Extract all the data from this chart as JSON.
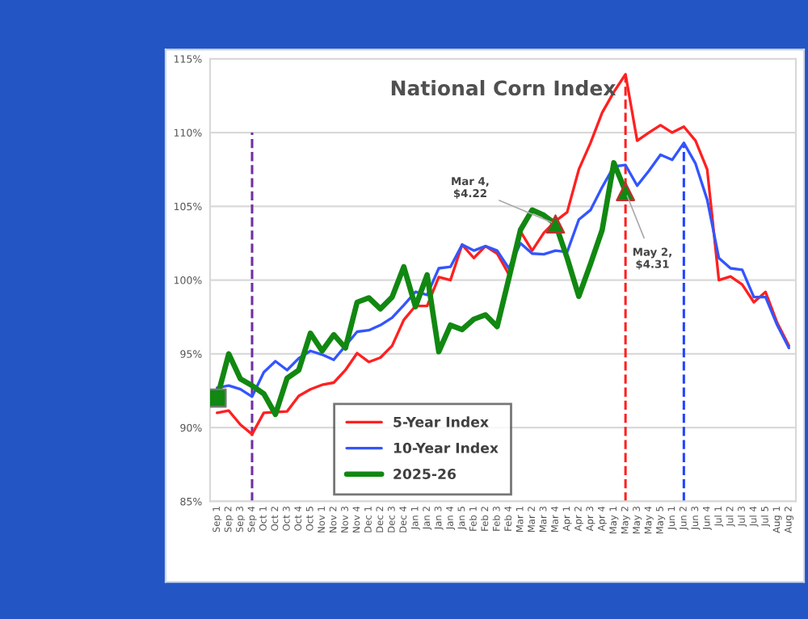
{
  "chart_data": {
    "type": "line",
    "title": "National Corn Index",
    "categories": [
      "Sep 1",
      "Sep 2",
      "Sep 3",
      "Sep 4",
      "Oct 1",
      "Oct 2",
      "Oct 3",
      "Oct 4",
      "Oct 5",
      "Nov 1",
      "Nov 2",
      "Nov 3",
      "Nov 4",
      "Dec 1",
      "Dec 2",
      "Dec 3",
      "Dec 4",
      "Jan 1",
      "Jan 2",
      "Jan 3",
      "Jan 4",
      "Jan 5",
      "Feb 1",
      "Feb 2",
      "Feb 3",
      "Feb 4",
      "Mar 1",
      "Mar 2",
      "Mar 3",
      "Mar 4",
      "Apr 1",
      "Apr 2",
      "Apr 3",
      "Apr 4",
      "May 1",
      "May 2",
      "May 3",
      "May 4",
      "May 5",
      "Jun 1",
      "Jun 2",
      "Jun 3",
      "Jun 4",
      "Jul 1",
      "Jul 2",
      "Jul 3",
      "Jul 4",
      "Jul 5",
      "Aug 1",
      "Aug 2"
    ],
    "series": [
      {
        "name": "5-Year Index",
        "color": "#ff2020",
        "values": [
          91.0,
          91.15,
          90.2,
          89.55,
          91.0,
          91.05,
          91.1,
          92.15,
          92.6,
          92.9,
          93.05,
          93.9,
          95.05,
          94.45,
          94.75,
          95.55,
          97.3,
          98.25,
          98.25,
          100.2,
          100.0,
          102.4,
          101.5,
          102.3,
          101.8,
          100.4,
          103.3,
          102.0,
          103.2,
          104.0,
          104.6,
          107.5,
          109.3,
          111.35,
          112.75,
          113.95,
          109.45,
          110.0,
          110.5,
          110.0,
          110.4,
          109.45,
          107.5,
          100.0,
          100.25,
          99.7,
          98.5,
          99.2,
          97.1,
          95.55
        ]
      },
      {
        "name": "10-Year Index",
        "color": "#3355ff",
        "values": [
          92.7,
          92.85,
          92.6,
          92.1,
          93.75,
          94.5,
          93.9,
          94.7,
          95.2,
          94.95,
          94.6,
          95.55,
          96.5,
          96.6,
          96.95,
          97.45,
          98.3,
          99.2,
          99.0,
          100.8,
          100.9,
          102.4,
          102.0,
          102.3,
          102.0,
          100.8,
          102.5,
          101.8,
          101.75,
          102.0,
          101.9,
          104.1,
          104.75,
          106.3,
          107.7,
          107.8,
          106.4,
          107.4,
          108.5,
          108.15,
          109.3,
          107.9,
          105.45,
          101.5,
          100.8,
          100.7,
          98.85,
          98.85,
          96.95,
          95.4
        ]
      },
      {
        "name": "2025-26",
        "color": "#118811",
        "values": [
          92.0,
          95.0,
          93.3,
          92.85,
          92.3,
          90.9,
          93.35,
          93.9,
          96.4,
          95.2,
          96.3,
          95.4,
          98.5,
          98.8,
          98.05,
          98.85,
          100.9,
          98.2,
          100.35,
          95.15,
          96.95,
          96.65,
          97.35,
          97.65,
          96.85,
          100.1,
          103.4,
          104.75,
          104.4,
          103.8,
          101.5,
          98.9,
          101.1,
          103.4,
          107.95,
          106.0,
          null,
          null,
          null,
          null,
          null,
          null,
          null,
          null,
          null,
          null,
          null,
          null,
          null,
          null
        ]
      },
      {
        "type": "scatter",
        "marker": "square",
        "color": "#118811",
        "values": [
          92.0,
          null,
          null,
          null,
          null,
          null,
          null,
          null,
          null,
          null,
          null,
          null,
          null,
          null,
          null,
          null,
          null,
          null,
          null,
          null,
          null,
          null,
          null,
          null,
          null,
          null,
          null,
          null,
          null,
          null,
          null,
          null,
          null,
          null,
          null,
          null,
          null,
          null,
          null,
          null,
          null,
          null,
          null,
          null,
          null,
          null,
          null,
          null,
          null,
          null
        ]
      },
      {
        "type": "scatter",
        "marker": "triangle",
        "color": "#118811",
        "values": [
          null,
          null,
          null,
          null,
          null,
          null,
          null,
          null,
          null,
          null,
          null,
          null,
          null,
          null,
          null,
          null,
          null,
          null,
          null,
          null,
          null,
          null,
          null,
          null,
          null,
          null,
          null,
          null,
          null,
          103.8,
          null,
          null,
          null,
          null,
          null,
          106.0,
          null,
          null,
          null,
          null,
          null,
          null,
          null,
          null,
          null,
          null,
          null,
          null,
          null,
          null
        ]
      }
    ],
    "ylim": [
      85,
      115
    ],
    "yticks": [
      {
        "value": 85,
        "label": "85%"
      },
      {
        "value": 90,
        "label": "90%"
      },
      {
        "value": 95,
        "label": "95%"
      },
      {
        "value": 100,
        "label": "100%"
      },
      {
        "value": 105,
        "label": "105%"
      },
      {
        "value": 110,
        "label": "110%"
      },
      {
        "value": 115,
        "label": "115%"
      }
    ],
    "grid": "y",
    "legend": "bottom left",
    "ref_lines": [
      {
        "axis": "x",
        "value": "Sep 4",
        "color": "#7030a0",
        "line_style": "dashed"
      },
      {
        "axis": "x",
        "value": "May 2",
        "color": "#ff2020",
        "line_style": "dashed"
      },
      {
        "axis": "x",
        "value": "Jun 2",
        "color": "#2244ff",
        "line_style": "dashed"
      }
    ],
    "annotations": [
      {
        "text": "Mar 4,\n$4.22",
        "x": "Mar 4",
        "y": 103.8
      },
      {
        "text": "May 2,\n$4.31",
        "x": "May 2",
        "y": 106.0
      }
    ]
  }
}
